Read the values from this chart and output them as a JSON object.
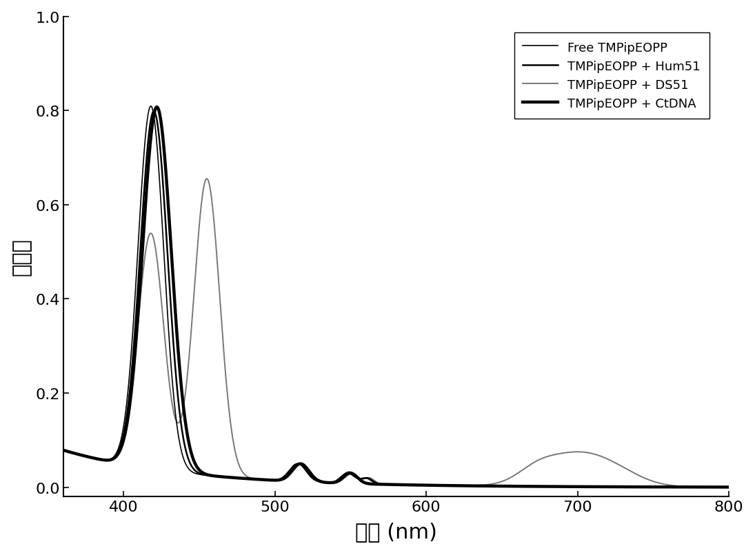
{
  "xlabel": "波长 (nm)",
  "ylabel": "吸光度",
  "xlim": [
    360,
    800
  ],
  "ylim": [
    -0.02,
    1.0
  ],
  "yticks": [
    0.0,
    0.2,
    0.4,
    0.6,
    0.8,
    1.0
  ],
  "xticks": [
    400,
    500,
    600,
    700,
    800
  ],
  "legend_labels": [
    "Free TMPipEOPP",
    "TMPipEOPP + Hum51",
    "TMPipEOPP + DS51",
    "TMPipEOPP + CtDNA"
  ],
  "background_color": "#ffffff",
  "free_color": "#000000",
  "hum51_color": "#000000",
  "ds51_color": "#777777",
  "ctdna_color": "#000000",
  "free_lw": 1.2,
  "hum51_lw": 1.8,
  "ds51_lw": 1.4,
  "ctdna_lw": 3.2
}
